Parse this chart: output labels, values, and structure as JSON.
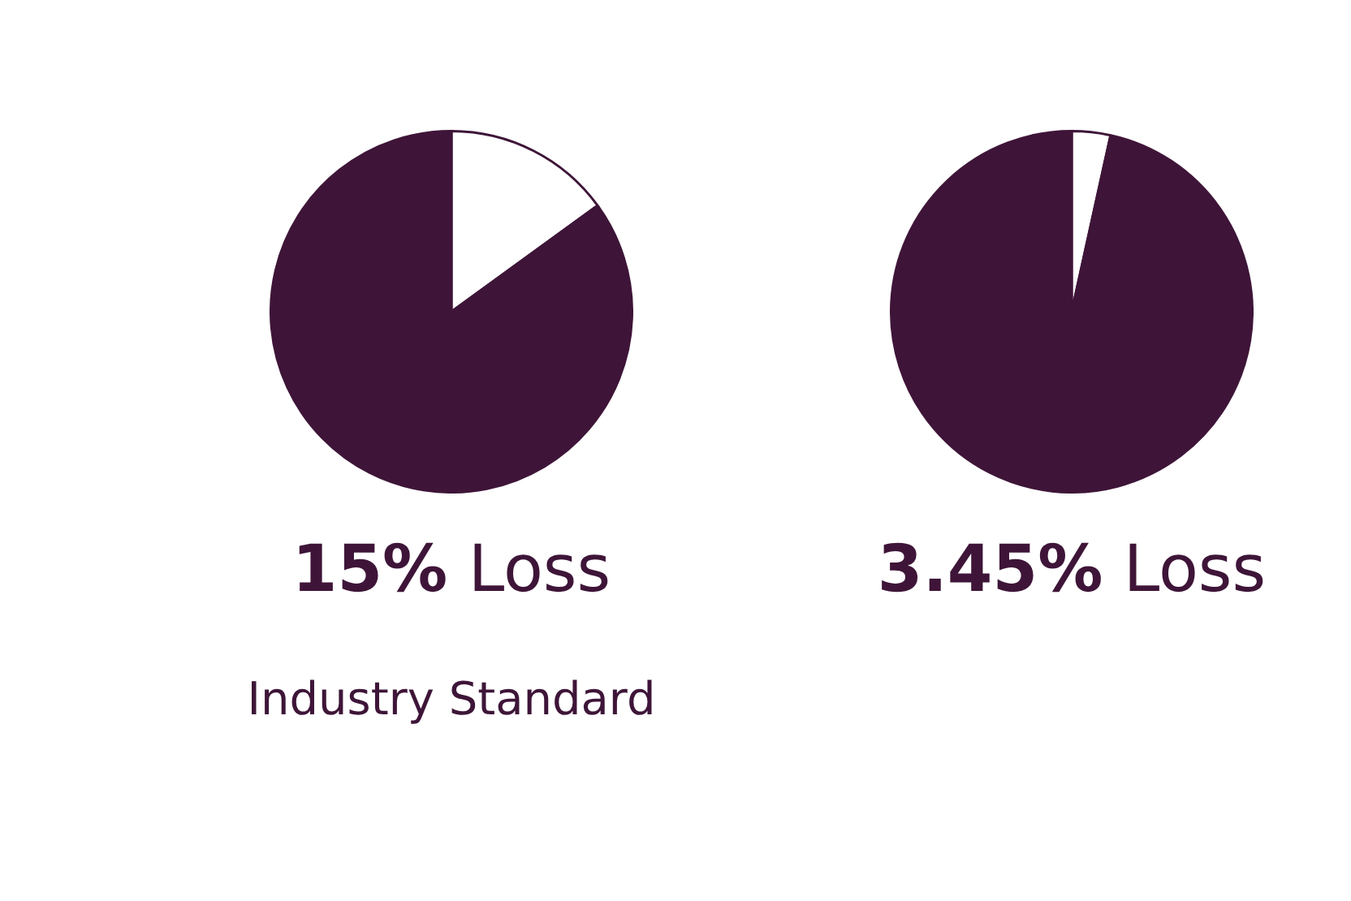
{
  "chart_data": [
    {
      "type": "pie",
      "title": "15% Loss",
      "subtitle": "Industry Standard",
      "categories": [
        null,
        null
      ],
      "values": [
        15,
        85
      ],
      "colors": [
        "#ffffff",
        "#3e1538"
      ],
      "legend": false
    },
    {
      "type": "pie",
      "title": "3.45% Loss",
      "categories": [
        null,
        null
      ],
      "values": [
        3.45,
        96.55
      ],
      "colors": [
        "#ffffff",
        "#3e1538"
      ],
      "legend": false
    }
  ]
}
